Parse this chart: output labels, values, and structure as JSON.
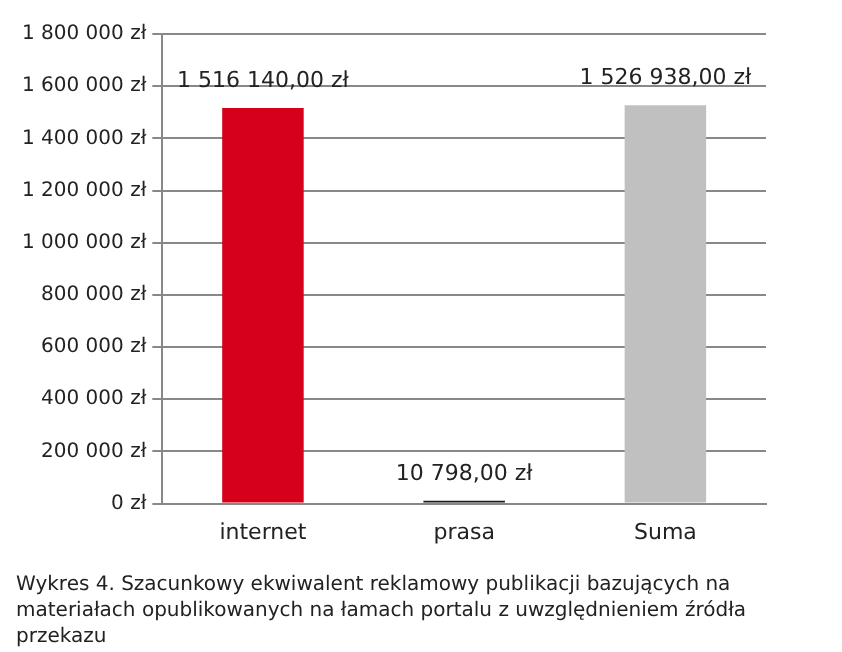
{
  "chart_data": {
    "type": "bar",
    "categories": [
      "internet",
      "prasa",
      "Suma"
    ],
    "values": [
      1516140,
      10798,
      1526938
    ],
    "colors": [
      "#d7001a",
      "#1a1a1a",
      "#c0c0c0"
    ],
    "value_labels": [
      "1 516 140,00 zł",
      "10 798,00 zł",
      "1 526 938,00 zł"
    ],
    "ylim": [
      0,
      1800000
    ],
    "yticks": [
      {
        "value": 0,
        "label": "0 zł"
      },
      {
        "value": 200000,
        "label": "200 000 zł"
      },
      {
        "value": 400000,
        "label": "400 000 zł"
      },
      {
        "value": 600000,
        "label": "600 000 zł"
      },
      {
        "value": 800000,
        "label": "800 000 zł"
      },
      {
        "value": 1000000,
        "label": "1 000 000 zł"
      },
      {
        "value": 1200000,
        "label": "1 200 000 zł"
      },
      {
        "value": 1400000,
        "label": "1 400 000 zł"
      },
      {
        "value": 1600000,
        "label": "1 600 000 zł"
      },
      {
        "value": 1800000,
        "label": "1 800 000 zł"
      }
    ],
    "grid": "y",
    "legend": false,
    "annotations": [
      "Wykres 4. Szacunkowy ekwiwalent reklamowy publikacji bazujących na materiałach opublikowanych na łamach portalu z uwzględnieniem źródła przekazu"
    ]
  }
}
